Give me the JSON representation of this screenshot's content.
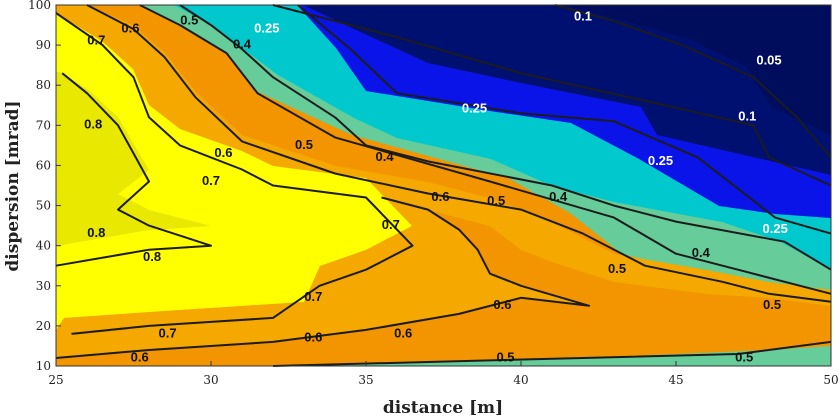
{
  "chart_data": {
    "type": "contour",
    "xlabel": "distance [m]",
    "ylabel": "dispersion [mrad]",
    "xlim": [
      25,
      50
    ],
    "ylim": [
      10,
      100
    ],
    "xticks": [
      "25",
      "30",
      "35",
      "40",
      "45",
      "50"
    ],
    "yticks": [
      "10",
      "20",
      "30",
      "40",
      "50",
      "60",
      "70",
      "80",
      "90",
      "100"
    ],
    "levels": [
      "0.05",
      "0.1",
      "0.25",
      "0.4",
      "0.5",
      "0.6",
      "0.7",
      "0.8"
    ],
    "region_colors": {
      "above_0.8": "#e8e800",
      "0.7-0.8": "#ffff00",
      "0.6-0.7": "#f5a800",
      "0.5-0.6": "#f29500",
      "0.4-0.5": "#66cc99",
      "0.25-0.4": "#00c8cc",
      "0.1-0.25": "#0a14e8",
      "0.05-0.1": "#001070",
      "below_0.05": "#000d5c"
    },
    "contours": [
      {
        "level": "0.05",
        "points": [
          [
            41.1,
            100
          ],
          [
            43,
            96
          ],
          [
            45.2,
            90
          ],
          [
            47.5,
            82
          ],
          [
            48.9,
            72
          ],
          [
            50,
            62
          ]
        ]
      },
      {
        "level": "0.1",
        "points": [
          [
            32,
            100
          ],
          [
            36,
            92
          ],
          [
            40,
            83
          ],
          [
            43.5,
            77
          ],
          [
            47.5,
            70
          ],
          [
            48,
            62
          ],
          [
            50,
            55
          ]
        ]
      },
      {
        "level": "0.25",
        "points": [
          [
            32.8,
            100
          ],
          [
            34.5,
            89
          ],
          [
            36,
            78
          ],
          [
            40,
            73
          ],
          [
            43,
            71
          ],
          [
            45.7,
            62
          ],
          [
            48.2,
            47
          ],
          [
            50,
            43
          ]
        ]
      },
      {
        "level": "0.4",
        "points": [
          [
            29,
            100
          ],
          [
            30,
            95
          ],
          [
            31,
            89
          ],
          [
            32,
            82
          ],
          [
            34,
            72
          ],
          [
            35,
            65
          ],
          [
            37,
            61
          ],
          [
            41,
            55
          ],
          [
            43,
            50
          ],
          [
            45,
            46
          ],
          [
            48.5,
            41
          ],
          [
            50,
            34
          ]
        ]
      },
      {
        "level": "0.5",
        "points": [
          [
            27.7,
            100
          ],
          [
            29,
            95
          ],
          [
            30.5,
            88
          ],
          [
            31.5,
            78
          ],
          [
            34,
            67
          ],
          [
            39,
            56
          ],
          [
            43,
            47
          ],
          [
            45,
            38
          ],
          [
            47,
            34
          ],
          [
            50,
            28
          ]
        ]
      },
      {
        "level": "0.6",
        "points": [
          [
            26,
            100
          ],
          [
            27.5,
            94
          ],
          [
            28.5,
            87
          ],
          [
            29.5,
            77
          ],
          [
            31,
            66
          ],
          [
            34,
            58
          ],
          [
            37,
            53
          ],
          [
            40,
            49
          ],
          [
            42,
            43
          ],
          [
            44,
            35
          ],
          [
            46.5,
            31
          ],
          [
            48,
            28
          ],
          [
            50,
            26
          ]
        ]
      },
      {
        "level": "0.7",
        "points": [
          [
            25,
            98
          ],
          [
            26.5,
            90
          ],
          [
            27.5,
            82
          ],
          [
            28,
            72
          ],
          [
            29,
            65
          ],
          [
            31,
            59
          ],
          [
            32,
            55
          ],
          [
            35,
            52
          ],
          [
            36.5,
            40
          ],
          [
            35,
            34
          ],
          [
            33.5,
            30
          ],
          [
            32,
            22
          ],
          [
            30,
            21
          ],
          [
            28,
            20
          ],
          [
            25.5,
            18
          ]
        ]
      },
      {
        "level": "0.8",
        "points": [
          [
            25.2,
            83
          ],
          [
            26,
            78
          ],
          [
            27,
            70
          ],
          [
            28,
            56
          ],
          [
            27,
            49
          ],
          [
            28,
            45
          ],
          [
            30,
            40
          ],
          [
            28,
            39
          ],
          [
            25,
            35
          ]
        ]
      },
      {
        "level": "0.6",
        "points": [
          [
            25,
            12
          ],
          [
            28,
            14
          ],
          [
            32,
            16
          ],
          [
            35,
            19
          ],
          [
            38,
            23
          ],
          [
            40,
            27
          ],
          [
            42.2,
            25
          ],
          [
            40,
            30
          ],
          [
            39,
            33
          ],
          [
            38.6,
            39
          ],
          [
            38,
            44
          ],
          [
            37,
            49
          ],
          [
            35.5,
            52
          ]
        ]
      },
      {
        "level": "0.5",
        "points": [
          [
            32,
            10
          ],
          [
            37,
            11
          ],
          [
            42,
            12
          ],
          [
            47,
            13
          ],
          [
            50,
            16
          ]
        ]
      }
    ],
    "labels": [
      {
        "text": "0.05",
        "at": [
          48,
          86
        ]
      },
      {
        "text": "0.1",
        "at": [
          42,
          97
        ]
      },
      {
        "text": "0.1",
        "at": [
          47.3,
          72
        ]
      },
      {
        "text": "0.25",
        "at": [
          31.8,
          94
        ]
      },
      {
        "text": "0.25",
        "at": [
          38.5,
          74
        ]
      },
      {
        "text": "0.25",
        "at": [
          44.5,
          61
        ]
      },
      {
        "text": "0.25",
        "at": [
          48.2,
          44
        ]
      },
      {
        "text": "0.4",
        "at": [
          31,
          90
        ]
      },
      {
        "text": "0.4",
        "at": [
          35.6,
          62
        ]
      },
      {
        "text": "0.4",
        "at": [
          41.2,
          52
        ]
      },
      {
        "text": "0.4",
        "at": [
          45.8,
          38
        ]
      },
      {
        "text": "0.5",
        "at": [
          29.3,
          96
        ]
      },
      {
        "text": "0.5",
        "at": [
          33,
          65
        ]
      },
      {
        "text": "0.5",
        "at": [
          39.2,
          51
        ]
      },
      {
        "text": "0.5",
        "at": [
          43.1,
          34
        ]
      },
      {
        "text": "0.5",
        "at": [
          48.1,
          25
        ]
      },
      {
        "text": "0.5",
        "at": [
          47.2,
          12
        ]
      },
      {
        "text": "0.5",
        "at": [
          39.5,
          12
        ]
      },
      {
        "text": "0.6",
        "at": [
          27.4,
          94
        ]
      },
      {
        "text": "0.6",
        "at": [
          30.4,
          63
        ]
      },
      {
        "text": "0.6",
        "at": [
          37.4,
          52
        ]
      },
      {
        "text": "0.6",
        "at": [
          39.4,
          25
        ]
      },
      {
        "text": "0.6",
        "at": [
          36.2,
          18
        ]
      },
      {
        "text": "0.6",
        "at": [
          33.3,
          17
        ]
      },
      {
        "text": "0.6",
        "at": [
          27.7,
          12
        ]
      },
      {
        "text": "0.7",
        "at": [
          26.3,
          91
        ]
      },
      {
        "text": "0.7",
        "at": [
          30,
          56
        ]
      },
      {
        "text": "0.7",
        "at": [
          35.8,
          45
        ]
      },
      {
        "text": "0.7",
        "at": [
          33.3,
          27
        ]
      },
      {
        "text": "0.7",
        "at": [
          28.6,
          18
        ]
      },
      {
        "text": "0.8",
        "at": [
          26.2,
          70
        ]
      },
      {
        "text": "0.8",
        "at": [
          26.3,
          43
        ]
      },
      {
        "text": "0.8",
        "at": [
          28.1,
          37
        ]
      }
    ]
  }
}
